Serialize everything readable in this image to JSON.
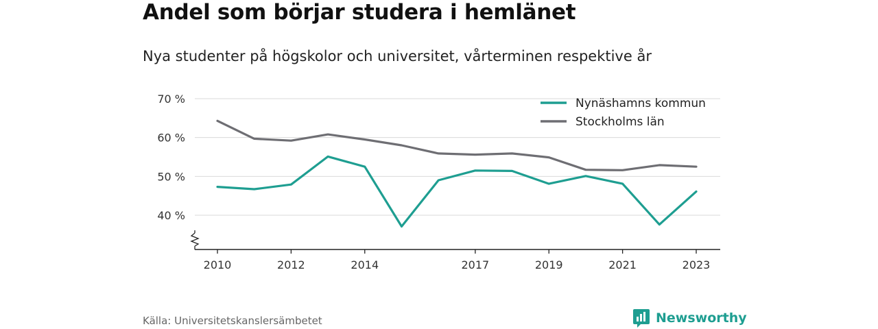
{
  "title": "Andel som börjar studera i hemlänet",
  "subtitle": "Nya studenter på högskolor och universitet, vårterminen respektive år",
  "source": "Källa: Universitetskanslersämbetet",
  "brand": {
    "name": "Newsworthy",
    "icon": "newsworthy-logo-icon",
    "color": "#1e9e91"
  },
  "chart_data": {
    "type": "line",
    "title": "Andel som börjar studera i hemlänet",
    "subtitle": "Nya studenter på högskolor och universitet, vårterminen respektive år",
    "x": [
      2010,
      2011,
      2012,
      2013,
      2014,
      2015,
      2016,
      2017,
      2018,
      2019,
      2020,
      2021,
      2022,
      2023
    ],
    "x_ticks": [
      2010,
      2012,
      2014,
      2017,
      2019,
      2021,
      2023
    ],
    "y_ticks": [
      40,
      50,
      60,
      70
    ],
    "y_tick_labels": [
      "40 %",
      "50 %",
      "60 %",
      "70 %"
    ],
    "ylim": [
      31,
      70
    ],
    "y_axis_broken": true,
    "grid": true,
    "legend_position": "top-right",
    "series": [
      {
        "name": "Nynäshamns kommun",
        "color": "#1e9e91",
        "values": [
          47.3,
          46.7,
          47.9,
          55.1,
          52.5,
          37.1,
          49.0,
          51.5,
          51.4,
          48.1,
          50.1,
          48.1,
          37.6,
          46.1
        ]
      },
      {
        "name": "Stockholms län",
        "color": "#6e6e73",
        "values": [
          64.3,
          59.7,
          59.2,
          60.8,
          59.5,
          58.0,
          55.9,
          55.6,
          55.9,
          54.9,
          51.7,
          51.6,
          52.9,
          52.5
        ]
      }
    ]
  }
}
